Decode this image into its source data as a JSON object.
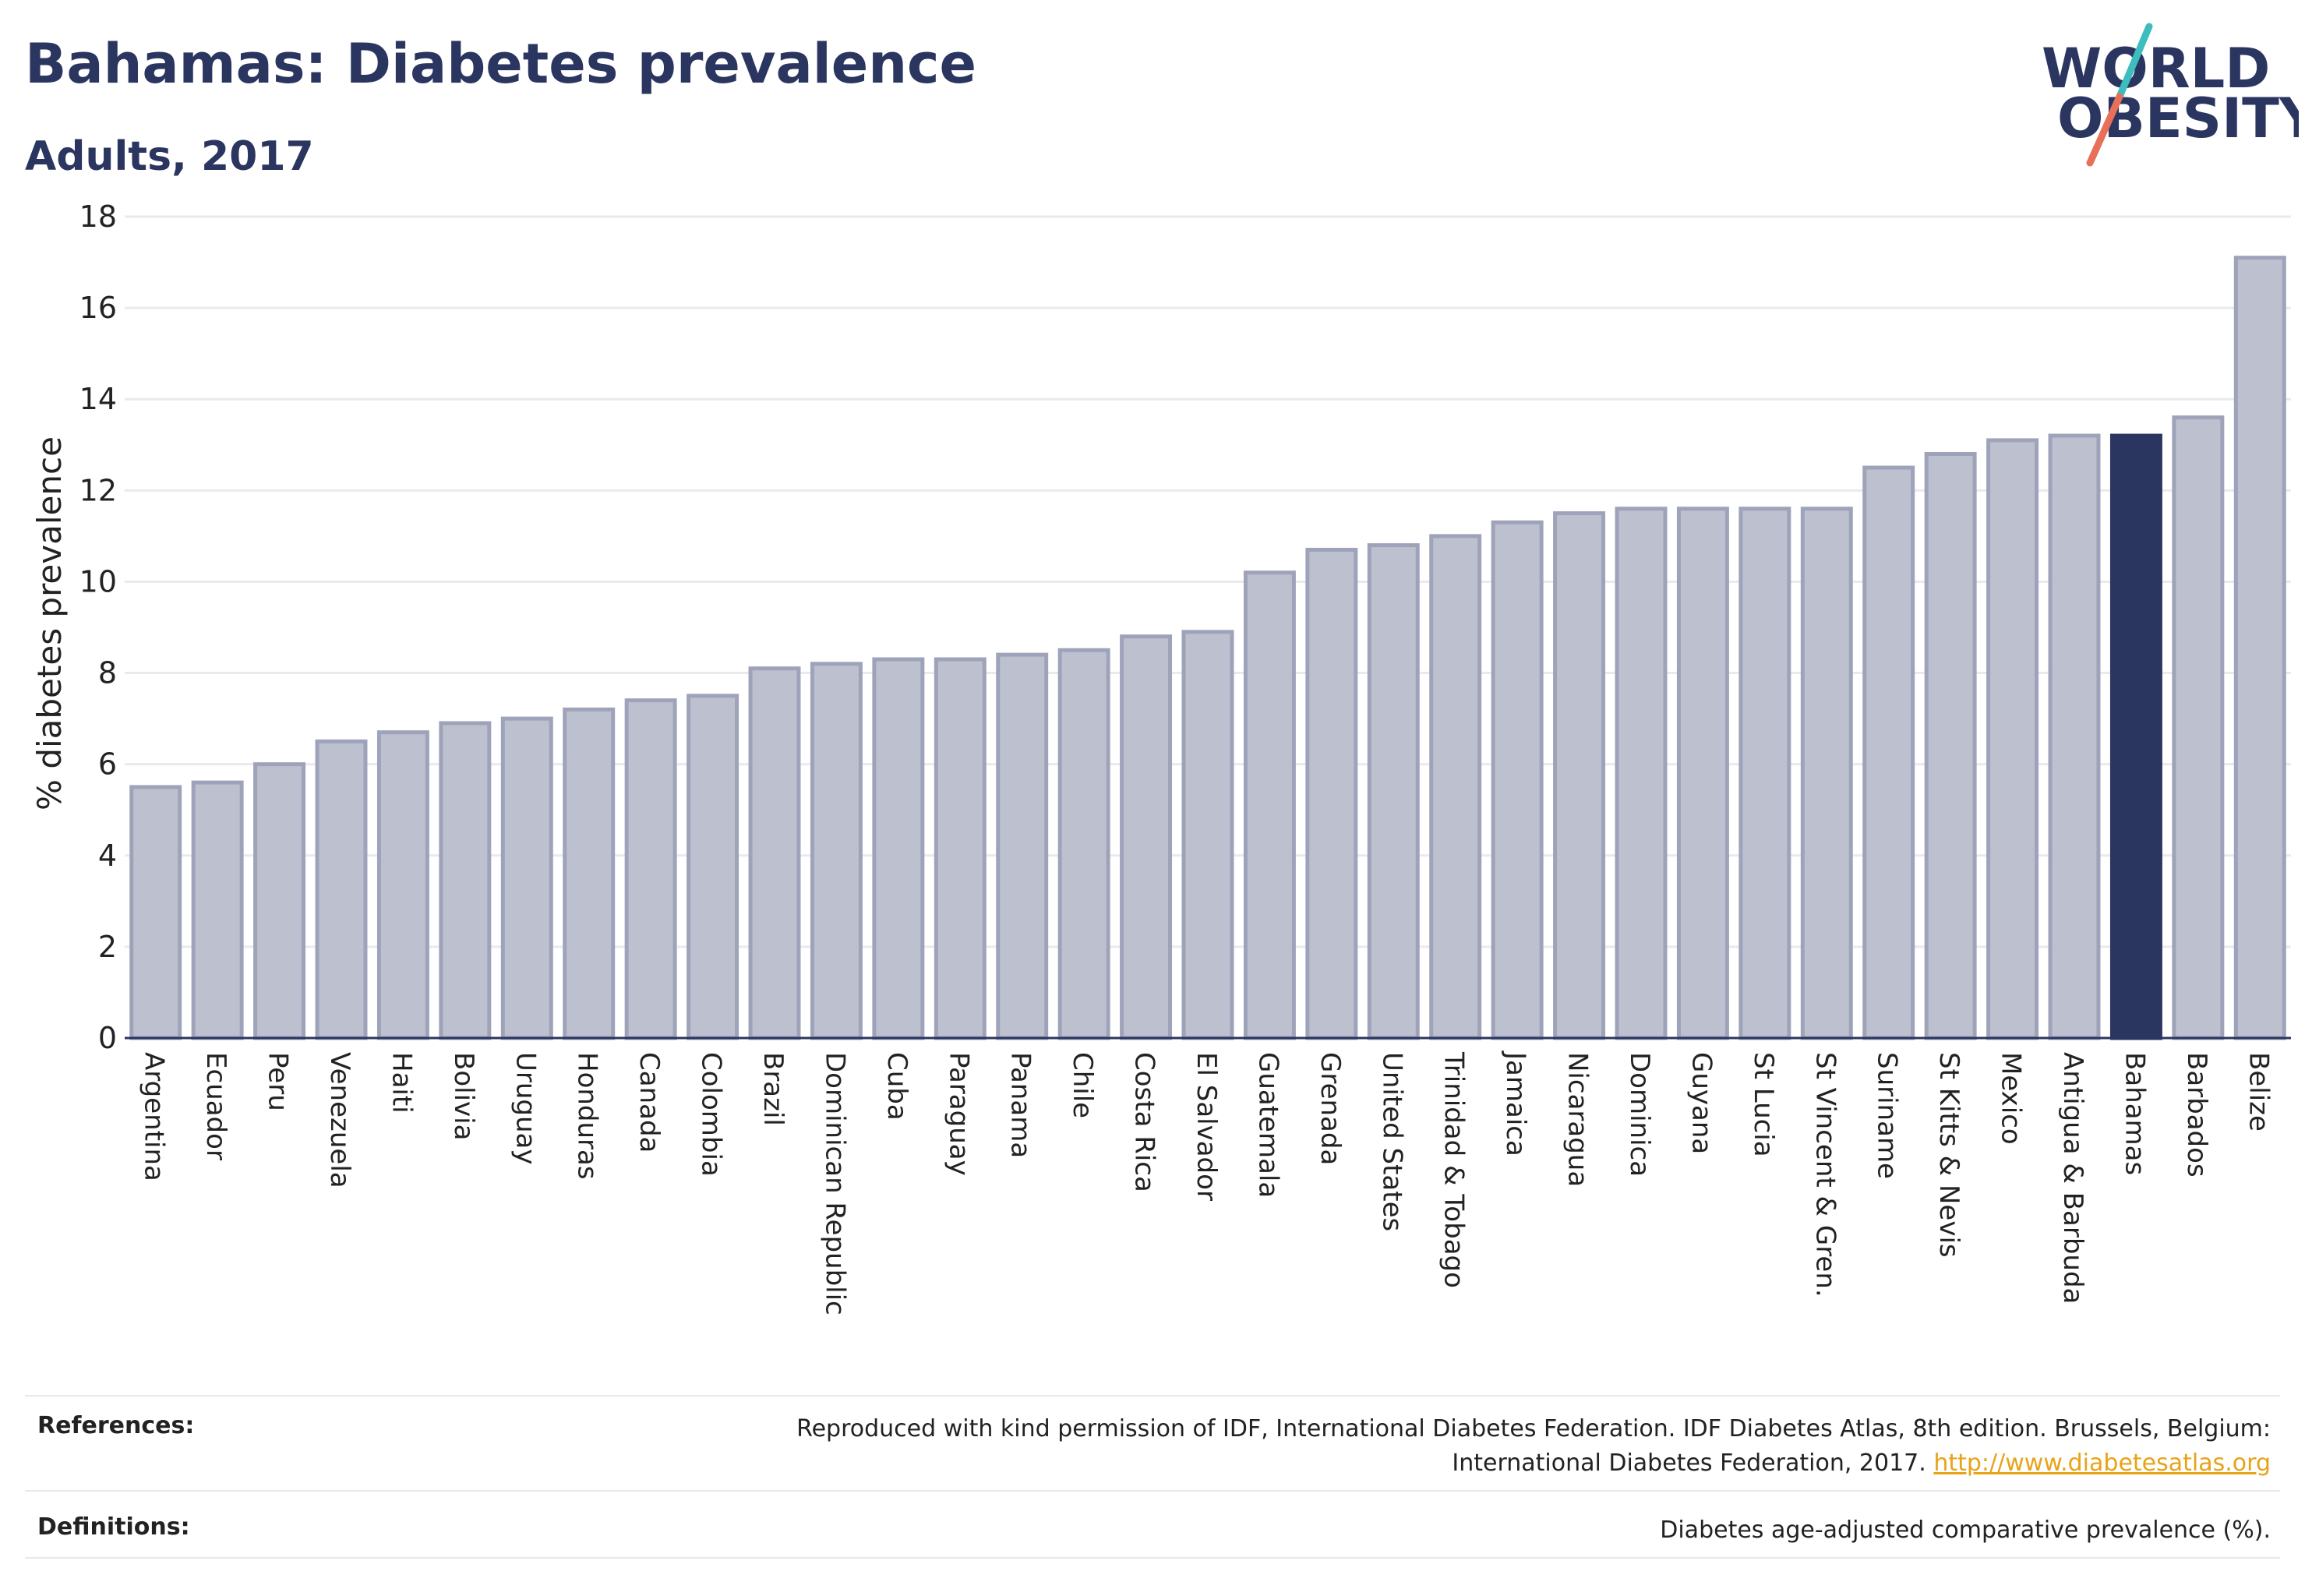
{
  "header": {
    "title": "Bahamas: Diabetes prevalence",
    "subtitle": "Adults, 2017"
  },
  "logo": {
    "line1": "WORLD",
    "line2": "OBESITY",
    "slash_color_top": "#3dbdbd",
    "slash_color_bottom": "#e8705a",
    "text_color": "#2b3660"
  },
  "chart_data": {
    "type": "bar",
    "ylabel": "% diabetes prevalence",
    "ylim": [
      0,
      18
    ],
    "yticks": [
      0,
      2,
      4,
      6,
      8,
      10,
      12,
      14,
      16,
      18
    ],
    "grid": true,
    "highlight": "Bahamas",
    "colors": {
      "bar": "#bdc0cf",
      "bar_border": "#9ea3b9",
      "highlight": "#2b3660",
      "grid": "#e9eaef",
      "axis": "#2b3660"
    },
    "categories": [
      "Argentina",
      "Ecuador",
      "Peru",
      "Venezuela",
      "Haiti",
      "Bolivia",
      "Uruguay",
      "Honduras",
      "Canada",
      "Colombia",
      "Brazil",
      "Dominican Republic",
      "Cuba",
      "Paraguay",
      "Panama",
      "Chile",
      "Costa Rica",
      "El Salvador",
      "Guatemala",
      "Grenada",
      "United States",
      "Trinidad & Tobago",
      "Jamaica",
      "Nicaragua",
      "Dominica",
      "Guyana",
      "St Lucia",
      "St Vincent & Gren.",
      "Suriname",
      "St Kitts & Nevis",
      "Mexico",
      "Antigua & Barbuda",
      "Bahamas",
      "Barbados",
      "Belize"
    ],
    "values": [
      5.5,
      5.6,
      6.0,
      6.5,
      6.7,
      6.9,
      7.0,
      7.2,
      7.4,
      7.5,
      8.1,
      8.2,
      8.3,
      8.3,
      8.4,
      8.5,
      8.8,
      8.9,
      10.2,
      10.7,
      10.8,
      11.0,
      11.3,
      11.5,
      11.6,
      11.6,
      11.6,
      11.6,
      12.5,
      12.8,
      13.1,
      13.2,
      13.2,
      13.6,
      17.1
    ]
  },
  "footer": {
    "references_label": "References:",
    "references_text_1": "Reproduced with kind permission of IDF, International Diabetes Federation. IDF Diabetes Atlas, 8th edition. Brussels, Belgium:",
    "references_text_2": "International Diabetes Federation, 2017.",
    "references_link": "http://www.diabetesatlas.org",
    "definitions_label": "Definitions:",
    "definitions_text": "Diabetes age-adjusted comparative prevalence (%)."
  }
}
